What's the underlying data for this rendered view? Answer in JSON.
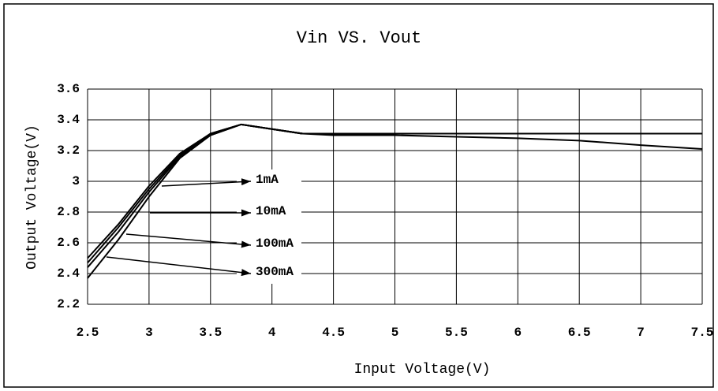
{
  "chart_data": {
    "type": "line",
    "title": "Vin VS. Vout",
    "x_label": "Input Voltage(V)",
    "y_label": "Output Voltage(V)",
    "x": [
      2.5,
      2.75,
      3,
      3.25,
      3.5,
      3.75,
      4,
      4.25,
      4.5,
      5,
      5.5,
      6,
      6.5,
      7,
      7.5
    ],
    "series": [
      {
        "name": "1mA",
        "color": "#000000",
        "values": [
          2.5,
          2.72,
          2.97,
          3.18,
          3.31,
          3.37,
          3.34,
          3.31,
          3.31,
          3.31,
          3.31,
          3.31,
          3.31,
          3.31,
          3.31
        ]
      },
      {
        "name": "10mA",
        "color": "#000000",
        "values": [
          2.47,
          2.7,
          2.95,
          3.17,
          3.31,
          3.37,
          3.34,
          3.31,
          3.31,
          3.31,
          3.31,
          3.31,
          3.31,
          3.31,
          3.31
        ]
      },
      {
        "name": "100mA",
        "color": "#000000",
        "values": [
          2.44,
          2.67,
          2.93,
          3.16,
          3.3,
          3.37,
          3.34,
          3.31,
          3.31,
          3.31,
          3.31,
          3.31,
          3.31,
          3.31,
          3.31
        ]
      },
      {
        "name": "300mA",
        "color": "#000000",
        "values": [
          2.37,
          2.62,
          2.9,
          3.15,
          3.3,
          3.37,
          3.34,
          3.31,
          3.3,
          3.3,
          3.29,
          3.28,
          3.265,
          3.235,
          3.21
        ]
      }
    ],
    "xlim": [
      2.5,
      7.5
    ],
    "xticks": [
      2.5,
      3,
      3.5,
      4,
      4.5,
      5,
      5.5,
      6,
      6.5,
      7,
      7.5
    ],
    "ylim": [
      2.2,
      3.6
    ],
    "yticks": [
      2.2,
      2.4,
      2.6,
      2.8,
      3,
      3.2,
      3.4,
      3.6
    ],
    "grid": true
  }
}
